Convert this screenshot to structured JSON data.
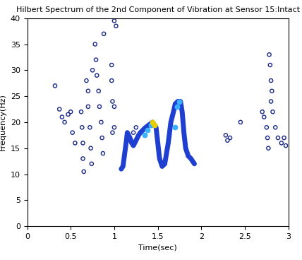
{
  "chart_data": {
    "type": "scatter",
    "title": "Hilbert Spectrum of the 2nd Component of Vibration at Sensor 15:Intact",
    "x_label": "Time(sec)",
    "y_label": "Frequency(Hz)",
    "xlim": [
      0,
      3
    ],
    "xticks": [
      0,
      0.5,
      1,
      1.5,
      2,
      2.5,
      3
    ],
    "ylim": [
      0,
      40
    ],
    "yticks": [
      0,
      5,
      10,
      15,
      20,
      25,
      30,
      35,
      40
    ],
    "grid": false,
    "series": [
      {
        "type": "scatter",
        "color": "#1b2a8a",
        "marker": "o",
        "x": [
          0.32,
          0.37,
          0.4,
          0.43,
          0.47,
          0.5,
          0.52,
          0.55,
          0.62,
          0.63,
          0.64,
          0.64,
          0.65,
          0.68,
          0.7,
          0.7,
          0.72,
          0.73,
          0.74,
          0.75,
          0.78,
          0.79,
          0.8,
          0.82,
          0.83,
          0.85,
          0.86,
          0.87,
          0.88,
          0.97,
          0.97,
          0.98,
          0.98,
          1.0,
          1.02,
          1.0,
          1.0,
          1.22,
          1.25,
          2.28,
          2.3,
          2.33,
          2.45,
          2.7,
          2.72,
          2.75,
          2.76,
          2.77,
          2.78,
          2.79,
          2.8,
          2.81,
          2.8,
          2.82,
          2.85,
          2.88,
          2.92,
          2.97,
          2.95
        ],
        "values": [
          27,
          22.5,
          21,
          20,
          21.5,
          22,
          18,
          16,
          22,
          19,
          16,
          13,
          10.5,
          28,
          26,
          23,
          19,
          15,
          12,
          30,
          35,
          32,
          29,
          26,
          23,
          20,
          17,
          14,
          37,
          31,
          28,
          24,
          18,
          39.5,
          38.5,
          23,
          19,
          18,
          19,
          17.5,
          16.5,
          17,
          20,
          22,
          21,
          19,
          17,
          15,
          33,
          31,
          28,
          26,
          24,
          22,
          19,
          17,
          16,
          15.5,
          17
        ]
      },
      {
        "type": "line",
        "color": "#1e3fd0",
        "line_style": "solid",
        "x": [
          1.08,
          1.1,
          1.12,
          1.14,
          1.15,
          1.18,
          1.2,
          1.22,
          1.25,
          1.28,
          1.3,
          1.33,
          1.36,
          1.4,
          1.44,
          1.48,
          1.5,
          1.52,
          1.55,
          1.58,
          1.6,
          1.62,
          1.65,
          1.68,
          1.7,
          1.73,
          1.76,
          1.78,
          1.8,
          1.82,
          1.85,
          1.88,
          1.92
        ],
        "values": [
          11,
          11.5,
          14,
          16.5,
          18,
          17,
          16,
          15.5,
          16.5,
          17.5,
          18,
          18.5,
          19,
          19.5,
          20,
          19,
          16,
          13,
          11.5,
          12,
          14,
          16,
          20,
          22,
          23.5,
          24,
          24,
          22,
          18,
          15,
          13.5,
          13,
          12
        ]
      },
      {
        "type": "scatter",
        "color": "#3ab0ff",
        "marker": "o",
        "x": [
          1.35,
          1.38,
          1.42,
          1.7,
          1.72,
          1.75
        ],
        "values": [
          17.5,
          18.5,
          19.5,
          19,
          23,
          24
        ]
      },
      {
        "type": "scatter",
        "color": "#e8d000",
        "marker": "o",
        "x": [
          1.44,
          1.46
        ],
        "values": [
          20,
          19.5
        ]
      }
    ]
  }
}
